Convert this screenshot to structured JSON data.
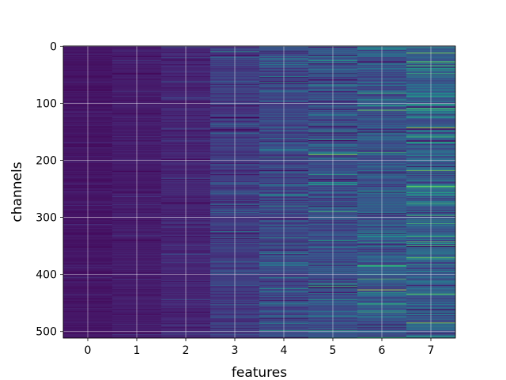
{
  "chart_data": {
    "type": "heatmap",
    "title": "",
    "xlabel": "features",
    "ylabel": "channels",
    "x_ticks": [
      0,
      1,
      2,
      3,
      4,
      5,
      6,
      7
    ],
    "y_ticks": [
      0,
      100,
      200,
      300,
      400,
      500
    ],
    "n_columns": 8,
    "n_rows": 512,
    "xlim": [
      -0.5,
      7.5
    ],
    "ylim": [
      511.5,
      -0.5
    ],
    "y_inverted": true,
    "grid": true,
    "colormap": "viridis",
    "column_mean_intensity": [
      0.06,
      0.08,
      0.11,
      0.18,
      0.22,
      0.25,
      0.27,
      0.3
    ],
    "column_variability": [
      0.04,
      0.05,
      0.07,
      0.12,
      0.16,
      0.2,
      0.21,
      0.22
    ],
    "highlight_rows": [
      {
        "column": 3,
        "row": 10,
        "value": 0.55
      },
      {
        "column": 4,
        "row": 498,
        "value": 0.6
      },
      {
        "column": 5,
        "row": 190,
        "value": 0.85
      },
      {
        "column": 5,
        "row": 290,
        "value": 0.7
      },
      {
        "column": 5,
        "row": 225,
        "value": 0.6
      },
      {
        "column": 6,
        "row": 112,
        "value": 0.8
      },
      {
        "column": 6,
        "row": 427,
        "value": 0.95
      },
      {
        "column": 6,
        "row": 408,
        "value": 0.75
      },
      {
        "column": 7,
        "row": 143,
        "value": 0.9
      },
      {
        "column": 7,
        "row": 485,
        "value": 0.85
      },
      {
        "column": 7,
        "row": 371,
        "value": 0.8
      },
      {
        "column": 7,
        "row": 435,
        "value": 0.75
      },
      {
        "column": 7,
        "row": 48,
        "value": 0.7
      }
    ],
    "colors": {
      "background": "#ffffff",
      "grid": "#ffffff",
      "axis": "#000000"
    }
  }
}
